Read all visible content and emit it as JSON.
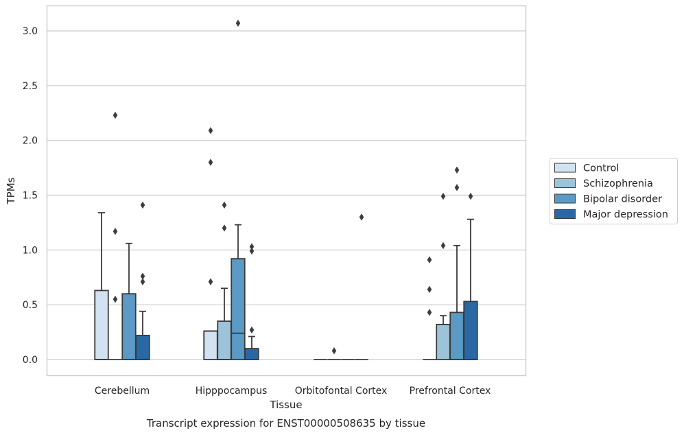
{
  "chart_data": {
    "type": "box",
    "title": "Transcript expression for ENST00000508635 by tissue",
    "xlabel": "Tissue",
    "ylabel": "TPMs",
    "ylim": [
      -0.15,
      3.23
    ],
    "yticks": [
      "0.0",
      "0.5",
      "1.0",
      "1.5",
      "2.0",
      "2.5",
      "3.0"
    ],
    "grid": true,
    "legend_position": "right",
    "categories": [
      "Cerebellum",
      "Hipppocampus",
      "Orbitofontal Cortex",
      "Prefrontal Cortex"
    ],
    "series": [
      {
        "name": "Control",
        "color": "#d2e2f0",
        "boxes": [
          {
            "q1": 0,
            "median": 0,
            "q3": 0.63,
            "whislo": 0,
            "whishi": 1.34,
            "fliers": []
          },
          {
            "q1": 0,
            "median": 0.26,
            "q3": 0.26,
            "whislo": 0,
            "whishi": 0.26,
            "fliers": [
              0.71,
              1.8,
              2.09
            ]
          },
          {
            "q1": 0,
            "median": 0,
            "q3": 0,
            "whislo": 0,
            "whishi": 0,
            "fliers": []
          },
          {
            "q1": 0,
            "median": 0,
            "q3": 0,
            "whislo": 0,
            "whishi": 0,
            "fliers": [
              0.43,
              0.64,
              0.91
            ]
          }
        ]
      },
      {
        "name": "Schizophrenia",
        "color": "#9dc3da",
        "boxes": [
          {
            "q1": 0,
            "median": 0,
            "q3": 0,
            "whislo": 0,
            "whishi": 0,
            "fliers": [
              0.55,
              1.17,
              2.23
            ]
          },
          {
            "q1": 0,
            "median": 0,
            "q3": 0.35,
            "whislo": 0,
            "whishi": 0.65,
            "fliers": [
              1.2,
              1.41
            ]
          },
          {
            "q1": 0,
            "median": 0,
            "q3": 0,
            "whislo": 0,
            "whishi": 0,
            "fliers": [
              0.08
            ]
          },
          {
            "q1": 0,
            "median": 0.32,
            "q3": 0.32,
            "whislo": 0,
            "whishi": 0.4,
            "fliers": [
              1.04,
              1.49
            ]
          }
        ]
      },
      {
        "name": "Bipolar disorder",
        "color": "#5b9ac4",
        "boxes": [
          {
            "q1": 0,
            "median": 0,
            "q3": 0.6,
            "whislo": 0,
            "whishi": 1.06,
            "fliers": []
          },
          {
            "q1": 0,
            "median": 0.24,
            "q3": 0.92,
            "whislo": 0,
            "whishi": 1.23,
            "fliers": [
              3.07
            ]
          },
          {
            "q1": 0,
            "median": 0,
            "q3": 0,
            "whislo": 0,
            "whishi": 0,
            "fliers": []
          },
          {
            "q1": 0,
            "median": 0,
            "q3": 0.43,
            "whislo": 0,
            "whishi": 1.04,
            "fliers": [
              1.57,
              1.73
            ]
          }
        ]
      },
      {
        "name": "Major depression",
        "color": "#2a68a5",
        "boxes": [
          {
            "q1": 0,
            "median": 0,
            "q3": 0.22,
            "whislo": 0,
            "whishi": 0.44,
            "fliers": [
              0.71,
              0.76,
              1.41
            ]
          },
          {
            "q1": 0,
            "median": 0,
            "q3": 0.1,
            "whislo": 0,
            "whishi": 0.21,
            "fliers": [
              0.27,
              0.99,
              1.03
            ]
          },
          {
            "q1": 0,
            "median": 0,
            "q3": 0,
            "whislo": 0,
            "whishi": 0,
            "fliers": [
              1.3
            ]
          },
          {
            "q1": 0,
            "median": 0,
            "q3": 0.53,
            "whislo": 0,
            "whishi": 1.28,
            "fliers": [
              1.49
            ]
          }
        ]
      }
    ]
  }
}
